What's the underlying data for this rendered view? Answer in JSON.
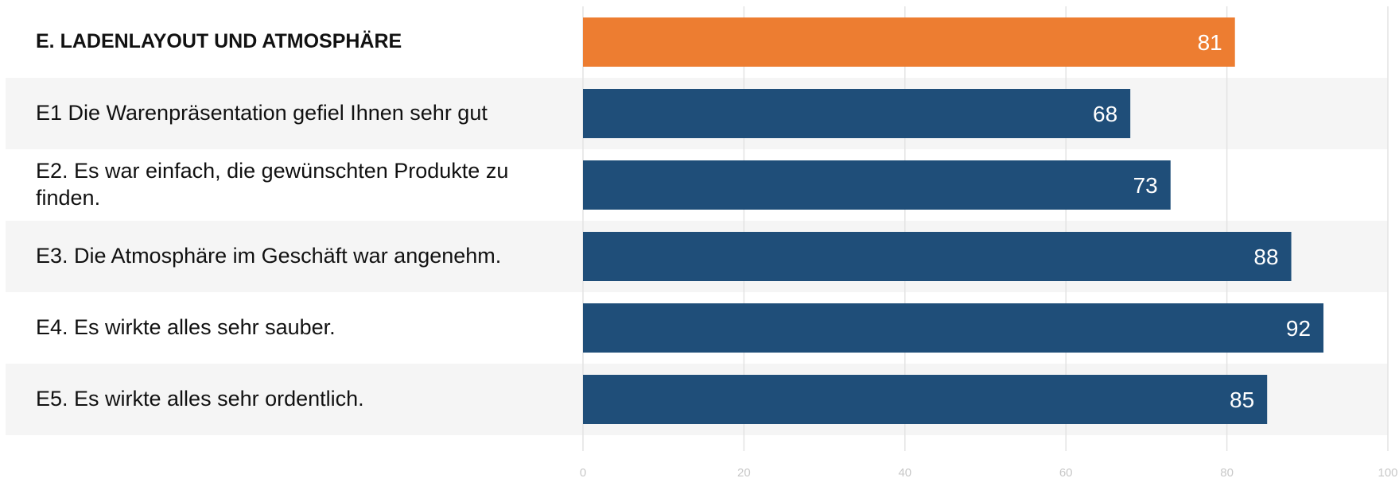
{
  "chart_data": {
    "type": "bar",
    "orientation": "horizontal",
    "categories": [
      "E. LADENLAYOUT UND ATMOSPHÄRE",
      "E1 Die Warenpräsentation gefiel Ihnen sehr gut",
      "E2. Es war einfach, die gewünschten Produkte zu finden.",
      "E3. Die Atmosphäre im Geschäft war angenehm.",
      "E4. Es wirkte alles sehr sauber.",
      "E5. Es wirkte alles sehr ordentlich."
    ],
    "values": [
      81,
      68,
      73,
      88,
      92,
      85
    ],
    "colors": [
      "#ed7d31",
      "#1f4e79",
      "#1f4e79",
      "#1f4e79",
      "#1f4e79",
      "#1f4e79"
    ],
    "xlim": [
      0,
      100
    ],
    "xticks": [
      0,
      20,
      40,
      60,
      80,
      100
    ],
    "grid": true
  }
}
